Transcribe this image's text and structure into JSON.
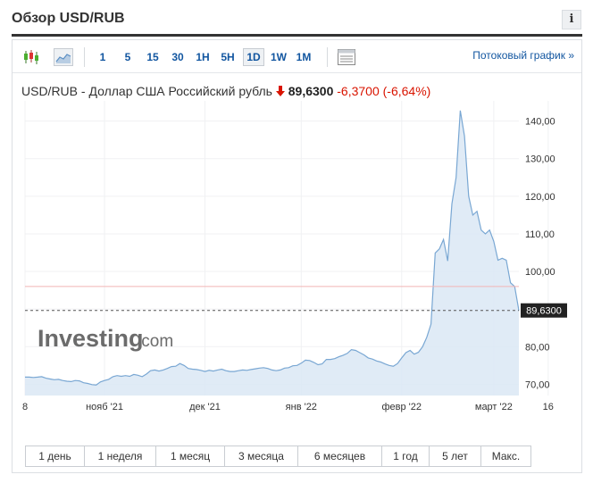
{
  "header": {
    "title": "Обзор USD/RUB",
    "info_icon": "info-icon"
  },
  "toolbar": {
    "chart_type_icons": [
      "candlestick-icon",
      "area-chart-icon"
    ],
    "intervals": [
      "1",
      "5",
      "15",
      "30",
      "1H",
      "5H",
      "1D",
      "1W",
      "1M"
    ],
    "active_interval": "1D",
    "settings_icon": "chart-settings-icon",
    "stream_link": "Потоковый график »"
  },
  "instrument": {
    "name": "USD/RUB - Доллар США Российский рубль",
    "direction_icon": "down-arrow-icon",
    "price": "89,6300",
    "change": "-6,3700",
    "change_pct": "(-6,64%)"
  },
  "watermark": {
    "brand": "Investing",
    "suffix": ".com"
  },
  "chart_data": {
    "type": "area",
    "x_tick_labels": [
      "8",
      "нояб '21",
      "дек '21",
      "янв '22",
      "февр '22",
      "март '22",
      "16"
    ],
    "y_tick_labels": [
      "70,00",
      "80,00",
      "90,00",
      "100,00",
      "110,00",
      "120,00",
      "130,00",
      "140,00"
    ],
    "ylim": [
      67,
      143
    ],
    "y_ticks": [
      70,
      80,
      90,
      100,
      110,
      120,
      130,
      140
    ],
    "grid": true,
    "current_value": 89.63,
    "current_value_label": "89,6300",
    "reference_value": 96,
    "series": [
      {
        "values": [
          71.9,
          71.9,
          71.8,
          71.9,
          72.0,
          71.6,
          71.4,
          71.2,
          71.3,
          71.0,
          70.8,
          70.7,
          71.0,
          70.9,
          70.4,
          70.2,
          69.9,
          69.8,
          70.6,
          71.0,
          71.3,
          72.0,
          72.3,
          72.1,
          72.3,
          72.1,
          72.6,
          72.4,
          72.0,
          72.7,
          73.6,
          73.8,
          73.5,
          73.8,
          74.2,
          74.7,
          74.8,
          75.5,
          75.0,
          74.2,
          74.0,
          73.9,
          73.7,
          73.4,
          73.7,
          73.5,
          73.8,
          74.0,
          73.6,
          73.4,
          73.4,
          73.6,
          73.8,
          73.7,
          73.9,
          74.1,
          74.3,
          74.4,
          74.2,
          73.8,
          73.6,
          73.8,
          74.3,
          74.4,
          74.9,
          75.0,
          75.6,
          76.4,
          76.3,
          75.8,
          75.2,
          75.4,
          76.6,
          76.6,
          76.8,
          77.3,
          77.7,
          78.2,
          79.2,
          79.0,
          78.4,
          77.8,
          77.0,
          76.7,
          76.2,
          75.9,
          75.4,
          75.0,
          74.8,
          75.5,
          77.0,
          78.4,
          79.0,
          78.0,
          78.5,
          80.0,
          82.5,
          86.0,
          104.9,
          106.0,
          108.5,
          102.8,
          118.0,
          125.0,
          142.8,
          136.0,
          120.0,
          115.0,
          116.0,
          111.0,
          110.0,
          111.0,
          108.0,
          103.0,
          103.5,
          103.0,
          97.0,
          96.0,
          89.6
        ]
      }
    ]
  },
  "range_buttons": [
    "1 день",
    "1 неделя",
    "1 месяц",
    "3 месяца",
    "6 месяцев",
    "1 год",
    "5 лет",
    "Макс."
  ]
}
